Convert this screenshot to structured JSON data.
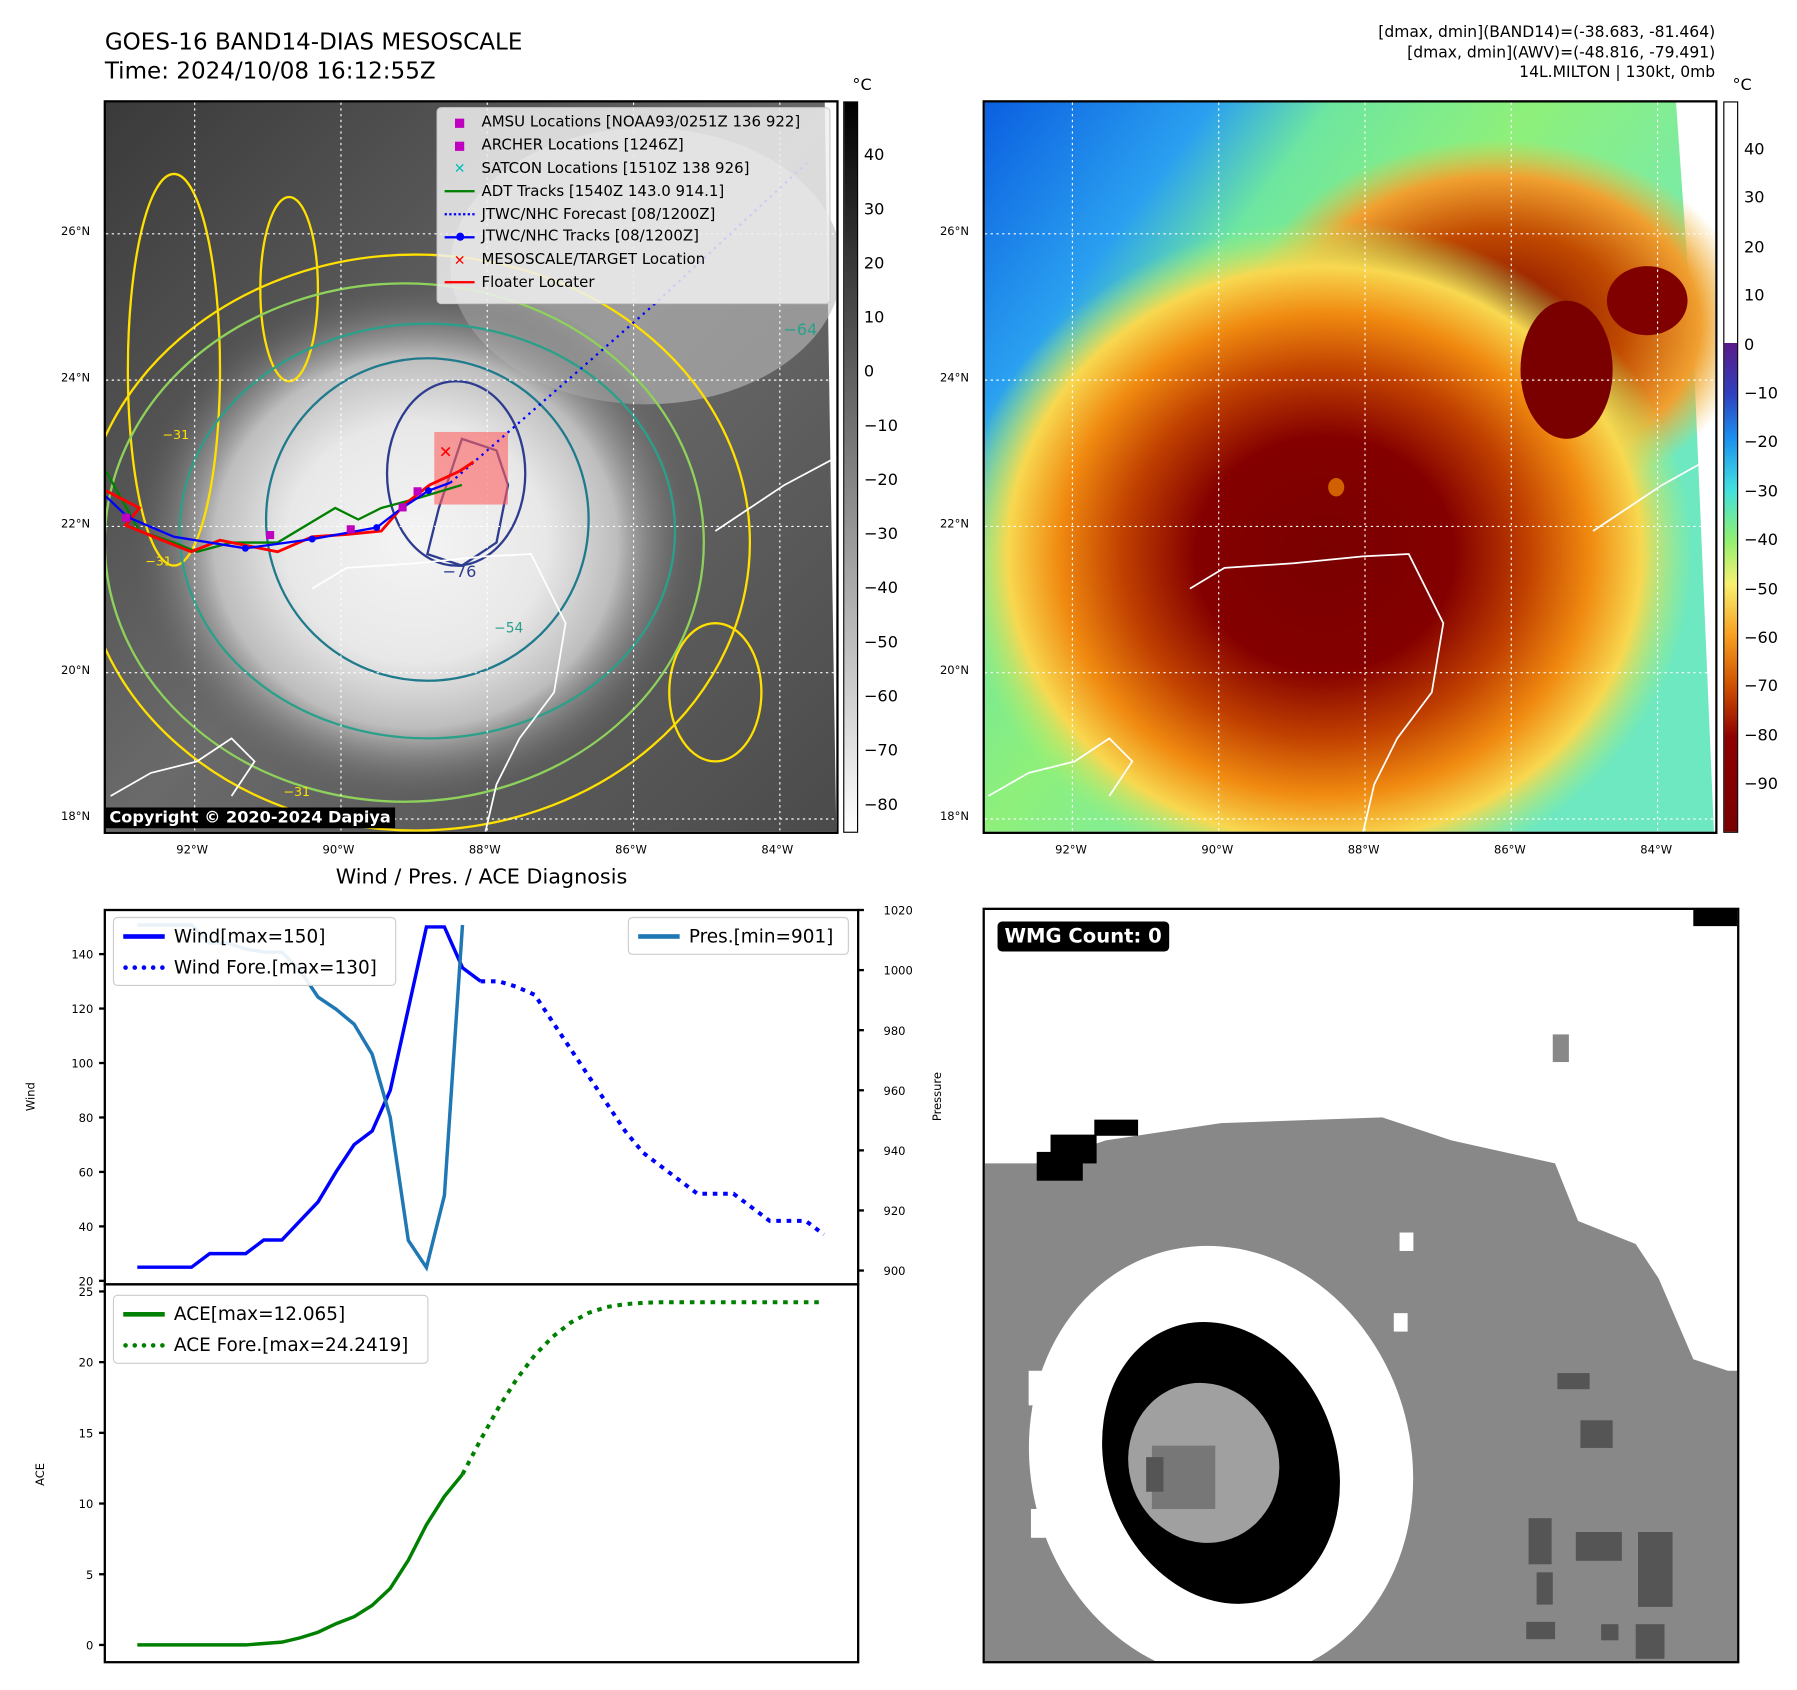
{
  "header": {
    "title_line1": "GOES-16 BAND14-DIAS MESOSCALE",
    "title_line2": "Time: 2024/10/08 16:12:55Z",
    "info_line1": "[dmax, dmin](BAND14)=(-38.683, -81.464)",
    "info_line2": "[dmax, dmin](AWV)=(-48.816, -79.491)",
    "info_line3": "14L.MILTON | 130kt, 0mb"
  },
  "maps": {
    "lat_labels": [
      "26°N",
      "24°N",
      "22°N",
      "20°N",
      "18°N"
    ],
    "lon_labels": [
      "92°W",
      "90°W",
      "88°W",
      "86°W",
      "84°W"
    ],
    "colorbar_unit": "°C",
    "left_colorbar_ticks": [
      "40",
      "30",
      "20",
      "10",
      "0",
      "−10",
      "−20",
      "−30",
      "−40",
      "−50",
      "−60",
      "−70",
      "−80"
    ],
    "right_colorbar_ticks": [
      "40",
      "30",
      "20",
      "10",
      "0",
      "−10",
      "−20",
      "−30",
      "−40",
      "−50",
      "−60",
      "−70",
      "−80",
      "−90"
    ],
    "contour_labels": [
      "−76",
      "−64",
      "−54",
      "−31",
      "−31",
      "−31"
    ],
    "copyright": "Copyright © 2020-2024 Dapiya",
    "legend": [
      {
        "label": "AMSU Locations [NOAA93/0251Z 136 922]",
        "icon": "square-marker",
        "color": "#c000c0"
      },
      {
        "label": "ARCHER Locations [1246Z]",
        "icon": "square-marker",
        "color": "#c000c0"
      },
      {
        "label": "SATCON Locations [1510Z 138 926]",
        "icon": "x-marker",
        "color": "#00bfbf"
      },
      {
        "label": "ADT Tracks [1540Z 143.0 914.1]",
        "icon": "solid-line",
        "color": "#008000"
      },
      {
        "label": "JTWC/NHC Forecast [08/1200Z]",
        "icon": "dotted-line",
        "color": "#0000ff"
      },
      {
        "label": "JTWC/NHC Tracks [08/1200Z]",
        "icon": "line-dot",
        "color": "#0000ff"
      },
      {
        "label": "MESOSCALE/TARGET Location",
        "icon": "x-marker",
        "color": "#ff0000"
      },
      {
        "label": "Floater Locater",
        "icon": "solid-line",
        "color": "#ff0000"
      }
    ]
  },
  "wmg": {
    "label": "WMG Count: 0"
  },
  "chart_data": [
    {
      "type": "line",
      "title": "Wind / Pres. / ACE Diagnosis",
      "ylabel": "Wind",
      "ylabel_right": "Pressure",
      "xlim": [
        -1.8,
        39.9
      ],
      "ylim": [
        18.7,
        156.2
      ],
      "ylim_right": [
        895.4,
        1020
      ],
      "yticks": [
        20,
        40,
        60,
        80,
        100,
        120,
        140
      ],
      "yticks_right": [
        900,
        920,
        940,
        960,
        980,
        1000,
        1020
      ],
      "series": [
        {
          "name": "Wind[max=150]",
          "axis": "left",
          "style": "solid",
          "color": "#0000ff",
          "x_start": 0,
          "values": [
            25,
            25,
            25,
            25,
            30,
            30,
            30,
            35,
            35,
            42,
            49,
            60,
            70,
            75,
            90,
            120,
            150,
            150,
            135,
            130
          ]
        },
        {
          "name": "Wind Fore.[max=130]",
          "axis": "left",
          "style": "dotted",
          "color": "#0000ff",
          "x_start": 19,
          "values": [
            130,
            130,
            128,
            125,
            115,
            105,
            95,
            85,
            75,
            67,
            62,
            57,
            52,
            52,
            52,
            47,
            42,
            42,
            42,
            37
          ]
        },
        {
          "name": "Pres.[min=901]",
          "axis": "right",
          "style": "solid",
          "color": "#1f77b4",
          "x_start": 0,
          "values": [
            1015,
            1015,
            1015,
            1015,
            1009,
            1009,
            1007,
            1006,
            1006,
            1000,
            991,
            987,
            982,
            972,
            951,
            910,
            901,
            925,
            1015
          ]
        }
      ],
      "legend_left": "upper-left",
      "legend_right": "upper-right"
    },
    {
      "type": "line",
      "ylabel": "ACE",
      "xlim": [
        -1.8,
        39.9
      ],
      "ylim": [
        -1.22,
        25.5
      ],
      "yticks": [
        0,
        5,
        10,
        15,
        20,
        25
      ],
      "series": [
        {
          "name": "ACE[max=12.065]",
          "style": "solid",
          "color": "#008000",
          "x_start": 0,
          "values": [
            0,
            0,
            0,
            0,
            0,
            0,
            0,
            0.1,
            0.2,
            0.5,
            0.9,
            1.5,
            2.0,
            2.8,
            4.0,
            6.0,
            8.5,
            10.5,
            12.065
          ]
        },
        {
          "name": "ACE Fore.[max=24.2419]",
          "style": "dotted",
          "color": "#008000",
          "x_start": 18,
          "values": [
            12.065,
            14.5,
            16.8,
            18.8,
            20.5,
            21.8,
            22.8,
            23.5,
            23.9,
            24.1,
            24.2,
            24.24,
            24.24,
            24.24,
            24.24,
            24.24,
            24.24,
            24.24,
            24.24,
            24.24,
            24.24
          ]
        }
      ],
      "legend": "upper-left"
    }
  ]
}
